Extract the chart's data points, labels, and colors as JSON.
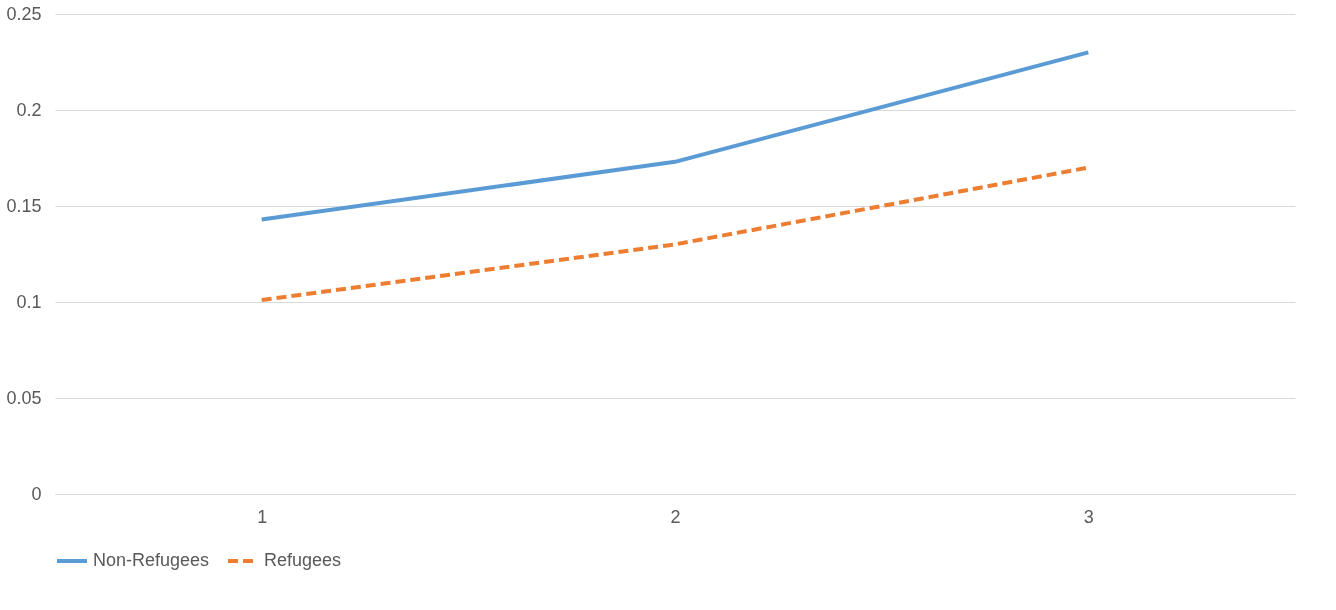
{
  "chart_data": {
    "type": "line",
    "categories": [
      "1",
      "2",
      "3"
    ],
    "series": [
      {
        "name": "Non-Refugees",
        "color": "#5b9bd5",
        "line_style": "solid",
        "values": [
          0.143,
          0.173,
          0.23
        ]
      },
      {
        "name": "Refugees",
        "color": "#ed7d31",
        "line_style": "dashed",
        "values": [
          0.101,
          0.13,
          0.17
        ]
      }
    ],
    "ylim": [
      0,
      0.25
    ],
    "yticks": [
      0,
      0.05,
      0.1,
      0.15,
      0.2,
      0.25
    ],
    "grid": "y",
    "legend": "bottom",
    "marker": "none"
  }
}
